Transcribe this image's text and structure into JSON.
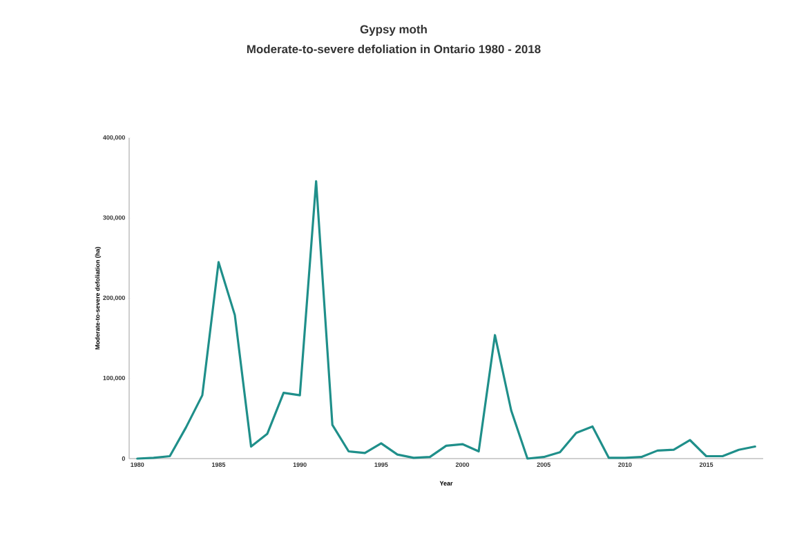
{
  "chart_data": {
    "type": "line",
    "title": "Gypsy moth",
    "subtitle": "Moderate-to-severe defoliation in Ontario 1980 - 2018",
    "xlabel": "Year",
    "ylabel": "Moderate-to-severe defoliation (ha)",
    "x": [
      1980,
      1981,
      1982,
      1983,
      1984,
      1985,
      1986,
      1987,
      1988,
      1989,
      1990,
      1991,
      1992,
      1993,
      1994,
      1995,
      1996,
      1997,
      1998,
      1999,
      2000,
      2001,
      2002,
      2003,
      2004,
      2005,
      2006,
      2007,
      2008,
      2009,
      2010,
      2011,
      2012,
      2013,
      2014,
      2015,
      2016,
      2017,
      2018
    ],
    "series": [
      {
        "color": "#1f8f8a",
        "values": [
          0,
          1000,
          3000,
          39000,
          79000,
          245000,
          179000,
          15000,
          31000,
          82000,
          79000,
          346000,
          42000,
          9000,
          7000,
          19000,
          5000,
          1000,
          2000,
          16000,
          18000,
          9000,
          154000,
          60000,
          0,
          2000,
          8000,
          32000,
          40000,
          1000,
          1000,
          2000,
          10000,
          11000,
          23000,
          3000,
          3000,
          11000,
          15000
        ]
      }
    ],
    "xlim": [
      1979.5,
      2018.5
    ],
    "ylim": [
      0,
      400000
    ],
    "xticks": [
      1980,
      1985,
      1990,
      1995,
      2000,
      2005,
      2010,
      2015
    ],
    "yticks": [
      0,
      {
        "value": 100000,
        "label": "100,000"
      },
      {
        "value": 200000,
        "label": "200,000"
      },
      {
        "value": 300000,
        "label": "300,000"
      },
      {
        "value": 400000,
        "label": "400,000"
      }
    ],
    "marker": "none",
    "line_style": "solid"
  }
}
